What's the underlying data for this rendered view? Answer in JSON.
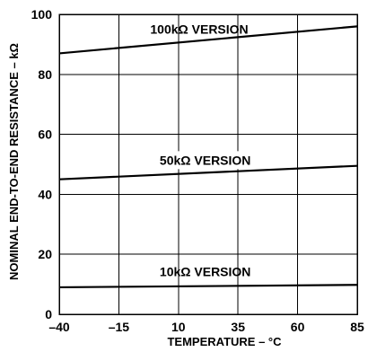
{
  "chart_data": {
    "type": "line",
    "title": "",
    "xlabel": "TEMPERATURE – °C",
    "ylabel": "NOMINAL END-TO-END RESISTANCE – kΩ",
    "x_ticks": [
      -40,
      -15,
      10,
      35,
      60,
      85
    ],
    "x_tick_labels": [
      "–40",
      "–15",
      "10",
      "35",
      "60",
      "85"
    ],
    "y_ticks": [
      0,
      20,
      40,
      60,
      80,
      100
    ],
    "y_tick_labels": [
      "0",
      "20",
      "40",
      "60",
      "80",
      "100"
    ],
    "xlim": [
      -40,
      85
    ],
    "ylim": [
      0,
      100
    ],
    "grid": true,
    "series": [
      {
        "name": "100kΩ VERSION",
        "x": [
          -40,
          85
        ],
        "y": [
          87,
          96
        ]
      },
      {
        "name": "50kΩ VERSION",
        "x": [
          -40,
          85
        ],
        "y": [
          45,
          49.5
        ]
      },
      {
        "name": "10kΩ VERSION",
        "x": [
          -40,
          85
        ],
        "y": [
          9,
          9.8
        ]
      }
    ]
  }
}
